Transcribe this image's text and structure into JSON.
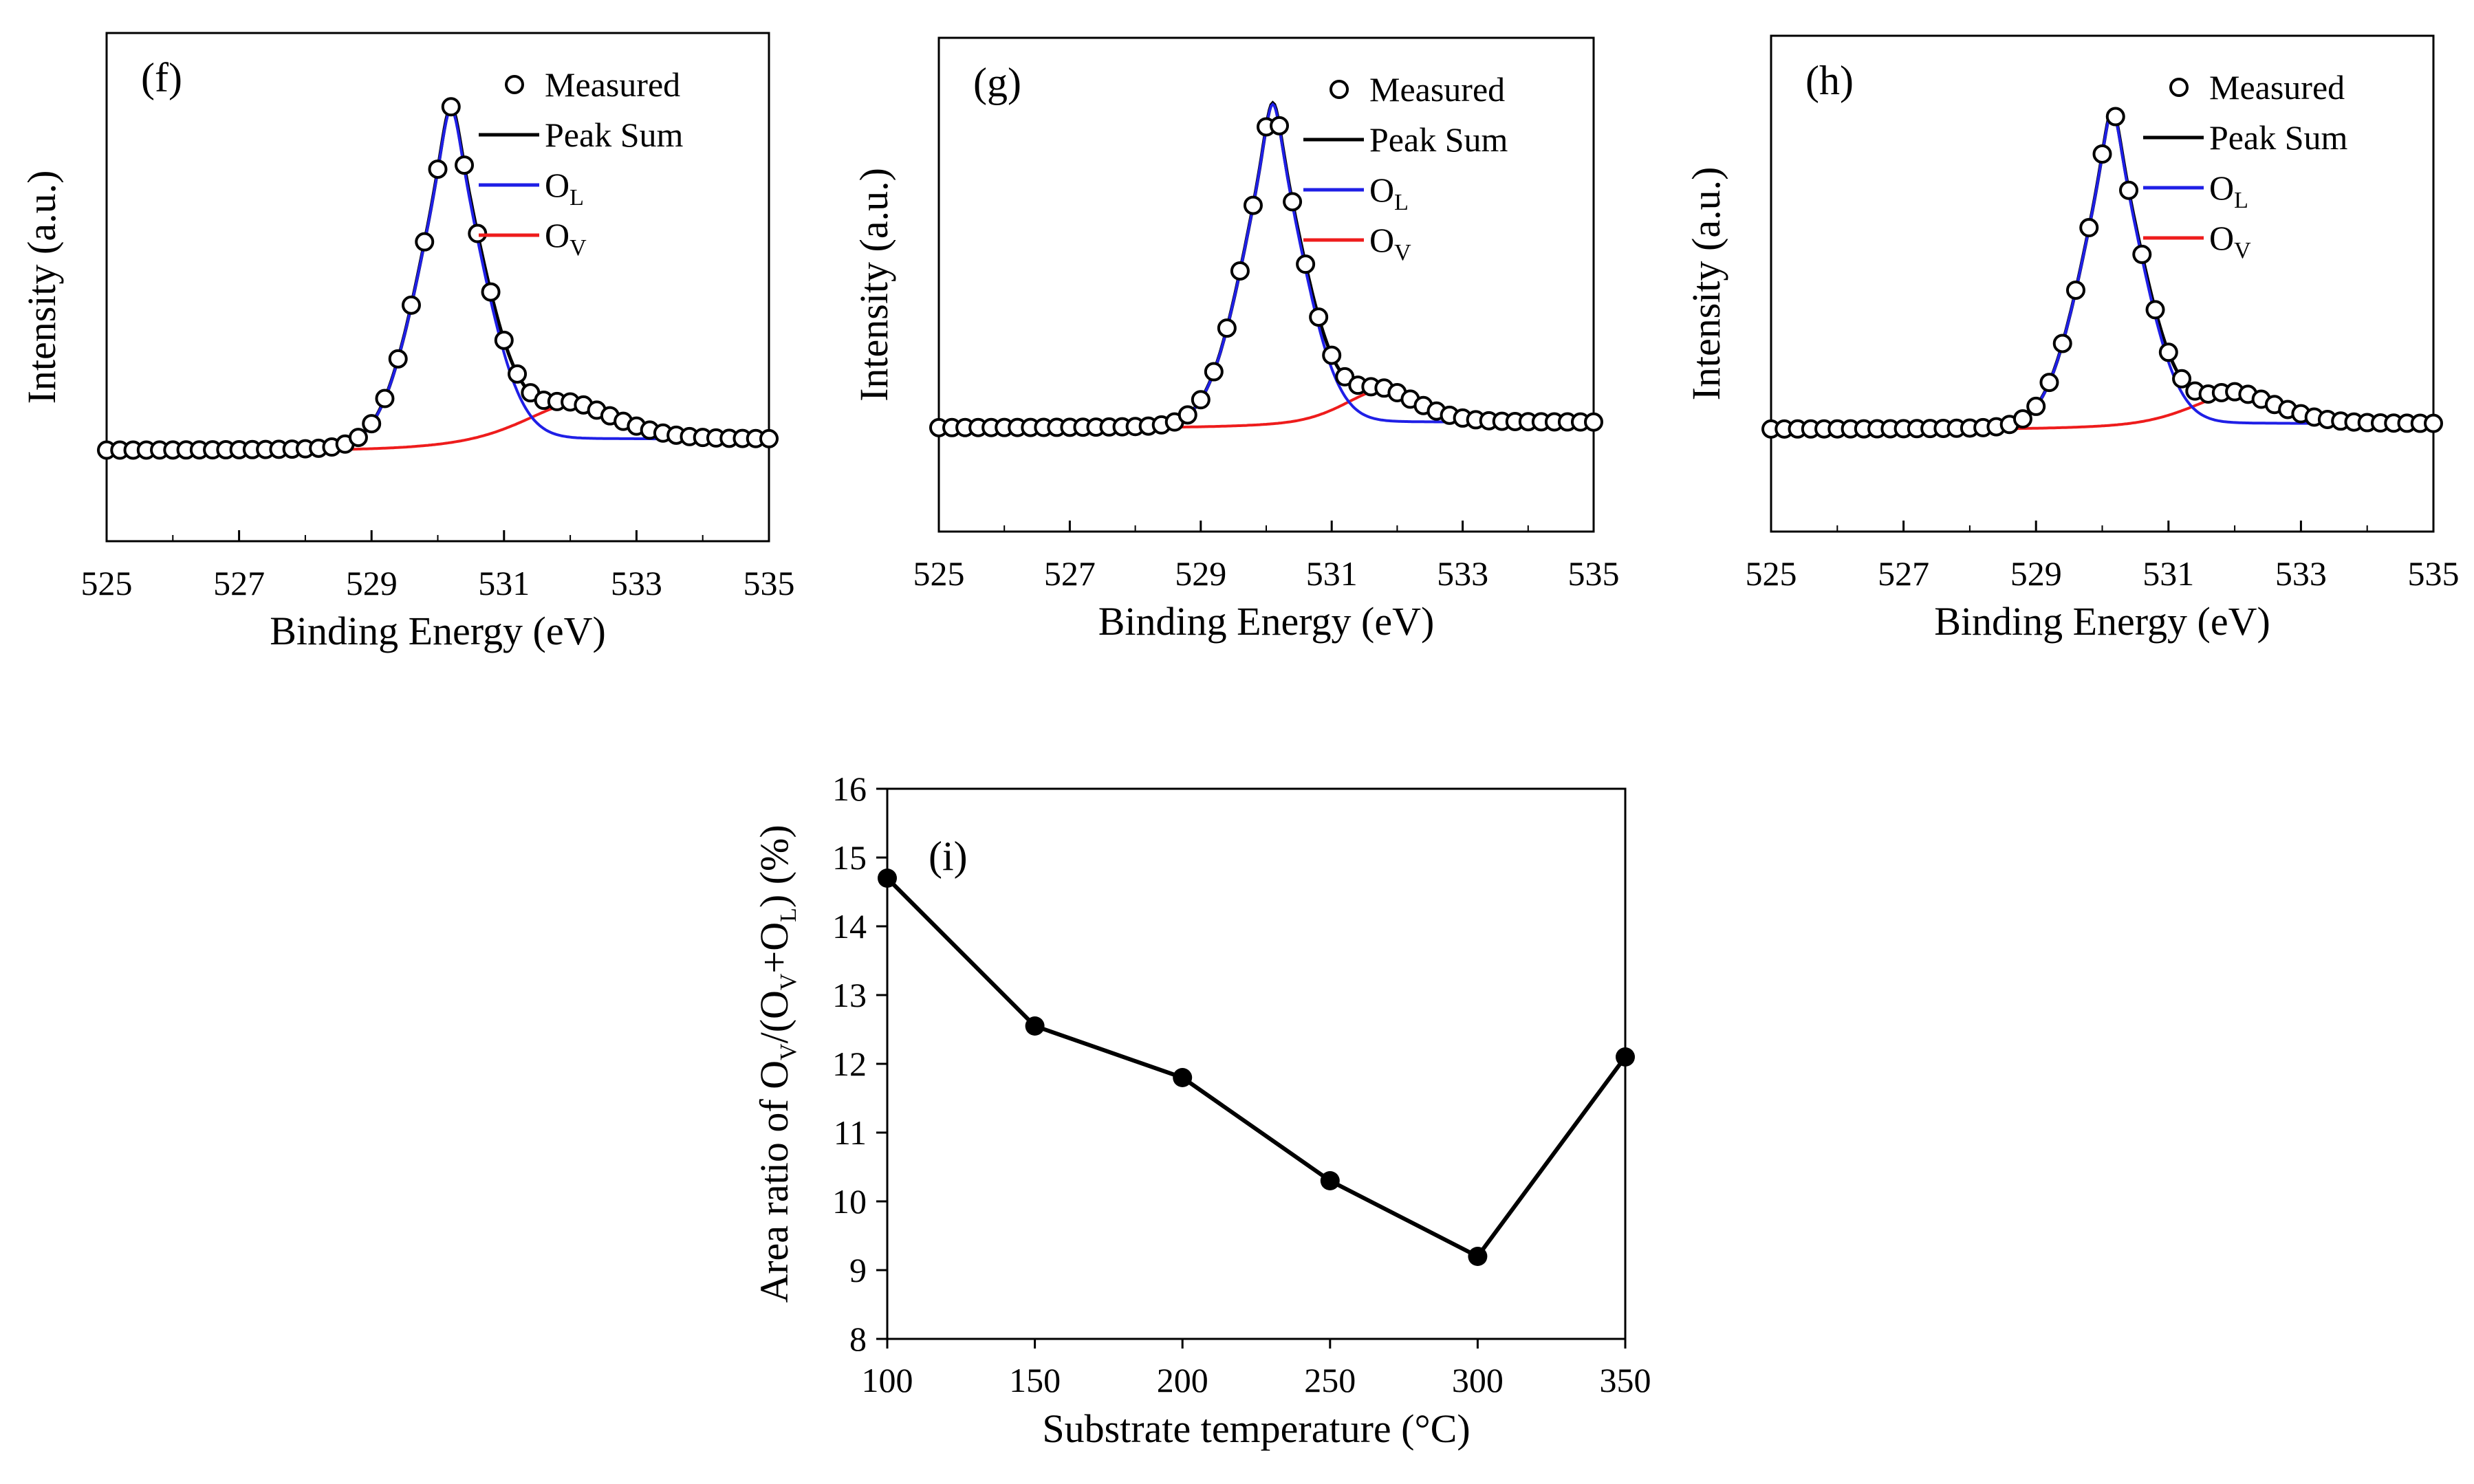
{
  "chart_data": [
    {
      "type": "scatter",
      "panel_label": "(f)",
      "title": "",
      "xlabel": "Binding Energy (eV)",
      "ylabel": "Intensity (a.u.)",
      "xlim": [
        525,
        535
      ],
      "x_ticks": [
        "525",
        "527",
        "529",
        "531",
        "533",
        "535"
      ],
      "legend": [
        {
          "key": "measured",
          "label": "Measured",
          "sub": ""
        },
        {
          "key": "peak_sum",
          "label": "Peak Sum",
          "sub": ""
        },
        {
          "key": "ol",
          "label": "O",
          "sub": "L"
        },
        {
          "key": "ov",
          "label": "O",
          "sub": "V"
        }
      ],
      "legend_position": "top-right",
      "model": {
        "baseline": 0.012,
        "ol": {
          "center": 530.2,
          "height": 0.905,
          "sigma": 0.55,
          "gamma": 0.22
        },
        "ov": {
          "center": 532.0,
          "height": 0.095,
          "sigma": 0.75,
          "gamma": 0.55
        },
        "bg_step": {
          "center": 530.2,
          "height": 0.03,
          "width": 0.6
        }
      },
      "measured_x": [
        525.0,
        525.2,
        525.4,
        525.6,
        525.8,
        526.0,
        526.2,
        526.4,
        526.6,
        526.8,
        527.0,
        527.2,
        527.4,
        527.6,
        527.8,
        528.0,
        528.2,
        528.4,
        528.6,
        528.8,
        529.0,
        529.2,
        529.4,
        529.6,
        529.8,
        530.0,
        530.2,
        530.4,
        530.6,
        530.8,
        531.0,
        531.2,
        531.4,
        531.6,
        531.8,
        532.0,
        532.2,
        532.4,
        532.6,
        532.8,
        533.0,
        533.2,
        533.4,
        533.6,
        533.8,
        534.0,
        534.2,
        534.4,
        534.6,
        534.8,
        535.0
      ]
    },
    {
      "type": "scatter",
      "panel_label": "(g)",
      "title": "",
      "xlabel": "Binding Energy (eV)",
      "ylabel": "Intensity (a.u.)",
      "xlim": [
        525,
        535
      ],
      "x_ticks": [
        "525",
        "527",
        "529",
        "531",
        "533",
        "535"
      ],
      "legend": [
        {
          "key": "measured",
          "label": "Measured",
          "sub": ""
        },
        {
          "key": "peak_sum",
          "label": "Peak Sum",
          "sub": ""
        },
        {
          "key": "ol",
          "label": "O",
          "sub": "L"
        },
        {
          "key": "ov",
          "label": "O",
          "sub": "V"
        }
      ],
      "legend_position": "top-right",
      "model": {
        "baseline": 0.055,
        "ol": {
          "center": 530.1,
          "height": 0.89,
          "sigma": 0.52,
          "gamma": 0.2
        },
        "ov": {
          "center": 531.75,
          "height": 0.09,
          "sigma": 0.6,
          "gamma": 0.5
        },
        "bg_step": {
          "center": 530.1,
          "height": 0.015,
          "width": 0.6
        }
      },
      "measured_x": [
        525.0,
        525.2,
        525.4,
        525.6,
        525.8,
        526.0,
        526.2,
        526.4,
        526.6,
        526.8,
        527.0,
        527.2,
        527.4,
        527.6,
        527.8,
        528.0,
        528.2,
        528.4,
        528.6,
        528.8,
        529.0,
        529.2,
        529.4,
        529.6,
        529.8,
        530.0,
        530.2,
        530.4,
        530.6,
        530.8,
        531.0,
        531.2,
        531.4,
        531.6,
        531.8,
        532.0,
        532.2,
        532.4,
        532.6,
        532.8,
        533.0,
        533.2,
        533.4,
        533.6,
        533.8,
        534.0,
        534.2,
        534.4,
        534.6,
        534.8,
        535.0
      ]
    },
    {
      "type": "scatter",
      "panel_label": "(h)",
      "title": "",
      "xlabel": "Binding Energy (eV)",
      "ylabel": "Intensity (a.u.)",
      "xlim": [
        525,
        535
      ],
      "x_ticks": [
        "525",
        "527",
        "529",
        "531",
        "533",
        "535"
      ],
      "legend": [
        {
          "key": "measured",
          "label": "Measured",
          "sub": ""
        },
        {
          "key": "peak_sum",
          "label": "Peak Sum",
          "sub": ""
        },
        {
          "key": "ol",
          "label": "O",
          "sub": "L"
        },
        {
          "key": "ov",
          "label": "O",
          "sub": "V"
        }
      ],
      "legend_position": "top-right",
      "model": {
        "baseline": 0.05,
        "ol": {
          "center": 530.15,
          "height": 0.87,
          "sigma": 0.52,
          "gamma": 0.2
        },
        "ov": {
          "center": 532.0,
          "height": 0.085,
          "sigma": 0.7,
          "gamma": 0.5
        },
        "bg_step": {
          "center": 530.15,
          "height": 0.015,
          "width": 0.6
        }
      },
      "measured_x": [
        525.0,
        525.2,
        525.4,
        525.6,
        525.8,
        526.0,
        526.2,
        526.4,
        526.6,
        526.8,
        527.0,
        527.2,
        527.4,
        527.6,
        527.8,
        528.0,
        528.2,
        528.4,
        528.6,
        528.8,
        529.0,
        529.2,
        529.4,
        529.6,
        529.8,
        530.0,
        530.2,
        530.4,
        530.6,
        530.8,
        531.0,
        531.2,
        531.4,
        531.6,
        531.8,
        532.0,
        532.2,
        532.4,
        532.6,
        532.8,
        533.0,
        533.2,
        533.4,
        533.6,
        533.8,
        534.0,
        534.2,
        534.4,
        534.6,
        534.8,
        535.0
      ]
    },
    {
      "type": "line",
      "panel_label": "(i)",
      "title": "",
      "xlabel": "Substrate temperature (°C)",
      "ylabel_parts": [
        {
          "text": "Area ratio of O",
          "sub": false
        },
        {
          "text": "V",
          "sub": true
        },
        {
          "text": "/(O",
          "sub": false
        },
        {
          "text": "V",
          "sub": true
        },
        {
          "text": "+O",
          "sub": false
        },
        {
          "text": "L",
          "sub": true
        },
        {
          "text": ") (%)",
          "sub": false
        }
      ],
      "x": [
        100,
        150,
        200,
        250,
        300,
        350
      ],
      "values": [
        14.7,
        12.55,
        11.8,
        10.3,
        9.2,
        12.1
      ],
      "xlim": [
        100,
        350
      ],
      "ylim": [
        8,
        16
      ],
      "x_ticks": [
        "100",
        "150",
        "200",
        "250",
        "300",
        "350"
      ],
      "y_ticks": [
        "8",
        "9",
        "10",
        "11",
        "12",
        "13",
        "14",
        "15",
        "16"
      ],
      "grid": false
    }
  ],
  "colors": {
    "measured": "#000000",
    "peak_sum": "#000000",
    "ol": "#1f1fe6",
    "ov": "#ee1c1c",
    "line": "#000000"
  }
}
